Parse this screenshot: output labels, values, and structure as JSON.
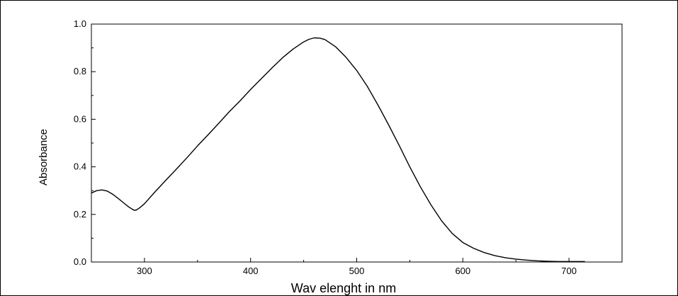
{
  "chart_data": {
    "type": "line",
    "title": "",
    "xlabel": "Wav elenght in nm",
    "ylabel": "Absorbance",
    "xlim": [
      250,
      750
    ],
    "ylim": [
      0.0,
      1.0
    ],
    "x_ticks": [
      300,
      400,
      500,
      600,
      700
    ],
    "x_tick_labels": [
      "300",
      "400",
      "500",
      "600",
      "700"
    ],
    "y_ticks": [
      0.0,
      0.2,
      0.4,
      0.6,
      0.8,
      1.0
    ],
    "y_tick_labels": [
      "0.0",
      "0.2",
      "0.4",
      "0.6",
      "0.8",
      "1.0"
    ],
    "grid": false,
    "legend": "none",
    "line_color": "#000000",
    "series": [
      {
        "x": [
          250,
          255,
          260,
          265,
          270,
          275,
          280,
          285,
          290,
          292,
          295,
          300,
          310,
          320,
          330,
          340,
          350,
          360,
          370,
          380,
          390,
          400,
          410,
          420,
          430,
          440,
          450,
          455,
          460,
          465,
          470,
          480,
          490,
          500,
          510,
          520,
          530,
          540,
          550,
          560,
          570,
          580,
          590,
          600,
          610,
          620,
          630,
          640,
          650,
          660,
          670,
          680,
          690,
          700,
          715
        ],
        "y": [
          0.29,
          0.3,
          0.303,
          0.298,
          0.285,
          0.268,
          0.25,
          0.232,
          0.218,
          0.218,
          0.226,
          0.245,
          0.295,
          0.343,
          0.39,
          0.438,
          0.488,
          0.535,
          0.583,
          0.632,
          0.677,
          0.725,
          0.77,
          0.815,
          0.858,
          0.895,
          0.925,
          0.936,
          0.942,
          0.941,
          0.935,
          0.905,
          0.86,
          0.805,
          0.738,
          0.66,
          0.577,
          0.49,
          0.4,
          0.316,
          0.24,
          0.173,
          0.12,
          0.082,
          0.058,
          0.04,
          0.027,
          0.018,
          0.012,
          0.008,
          0.005,
          0.003,
          0.002,
          0.002,
          0.002
        ]
      }
    ]
  }
}
